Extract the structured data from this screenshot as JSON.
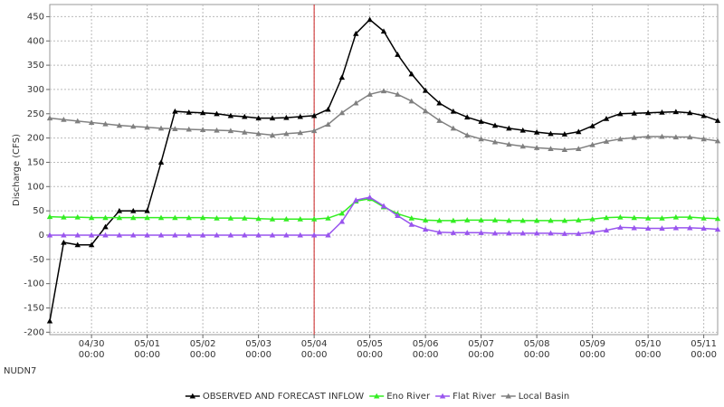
{
  "chart_data": {
    "type": "line",
    "y_label": "Discharge (CFS)",
    "station": "NUDN7",
    "x": [
      "04/29 06:00",
      "04/29 12:00",
      "04/29 18:00",
      "04/30 00:00",
      "04/30 06:00",
      "04/30 12:00",
      "04/30 18:00",
      "05/01 00:00",
      "05/01 06:00",
      "05/01 12:00",
      "05/01 18:00",
      "05/02 00:00",
      "05/02 06:00",
      "05/02 12:00",
      "05/02 18:00",
      "05/03 00:00",
      "05/03 06:00",
      "05/03 12:00",
      "05/03 18:00",
      "05/04 00:00",
      "05/04 06:00",
      "05/04 12:00",
      "05/04 18:00",
      "05/05 00:00",
      "05/05 06:00",
      "05/05 12:00",
      "05/05 18:00",
      "05/06 00:00",
      "05/06 06:00",
      "05/06 12:00",
      "05/06 18:00",
      "05/07 00:00",
      "05/07 06:00",
      "05/07 12:00",
      "05/07 18:00",
      "05/08 00:00",
      "05/08 06:00",
      "05/08 12:00",
      "05/08 18:00",
      "05/09 00:00",
      "05/09 06:00",
      "05/09 12:00",
      "05/09 18:00",
      "05/10 00:00",
      "05/10 06:00",
      "05/10 12:00",
      "05/10 18:00",
      "05/11 00:00",
      "05/11 06:00"
    ],
    "xlim": [
      "04/29 06:00",
      "05/11 06:00"
    ],
    "xticks": [
      "04/30 00:00",
      "05/01 00:00",
      "05/02 00:00",
      "05/03 00:00",
      "05/04 00:00",
      "05/05 00:00",
      "05/06 00:00",
      "05/07 00:00",
      "05/08 00:00",
      "05/09 00:00",
      "05/10 00:00",
      "05/11 00:00"
    ],
    "forecast_start": "05/04 00:00",
    "forecast_line_color": "#cc2222",
    "ylim": [
      -205,
      475
    ],
    "yticks": [
      -200,
      -150,
      -100,
      -50,
      0,
      50,
      100,
      150,
      200,
      250,
      300,
      350,
      400,
      450
    ],
    "grid": true,
    "legend": "bottom",
    "series": [
      {
        "name": "OBSERVED AND FORECAST INFLOW",
        "color": "#000000",
        "values": [
          -177,
          -15,
          -20,
          -20,
          17,
          50,
          50,
          50,
          150,
          255,
          253,
          252,
          250,
          246,
          244,
          241,
          241,
          242,
          244,
          246,
          259,
          325,
          415,
          444,
          420,
          372,
          332,
          298,
          272,
          255,
          243,
          234,
          226,
          220,
          216,
          212,
          209,
          208,
          213,
          225,
          240,
          250,
          251,
          252,
          253,
          254,
          252,
          246,
          236
        ]
      },
      {
        "name": "Eno River",
        "color": "#33ee22",
        "values": [
          38,
          37,
          37,
          36,
          36,
          36,
          36,
          36,
          36,
          36,
          36,
          36,
          35,
          35,
          35,
          34,
          33,
          33,
          33,
          33,
          35,
          45,
          70,
          75,
          58,
          44,
          35,
          31,
          30,
          30,
          31,
          31,
          31,
          30,
          30,
          30,
          30,
          30,
          31,
          33,
          36,
          37,
          36,
          35,
          35,
          37,
          37,
          35,
          34
        ]
      },
      {
        "name": "Flat River",
        "color": "#9955ee",
        "values": [
          0,
          0,
          0,
          0,
          0,
          0,
          0,
          0,
          0,
          0,
          0,
          0,
          0,
          0,
          0,
          0,
          0,
          0,
          0,
          0,
          0,
          28,
          72,
          78,
          60,
          40,
          22,
          12,
          6,
          5,
          5,
          5,
          4,
          4,
          4,
          4,
          4,
          3,
          3,
          6,
          10,
          16,
          15,
          14,
          14,
          15,
          15,
          14,
          12
        ]
      },
      {
        "name": "Local Basin",
        "color": "#808080",
        "values": [
          241,
          238,
          235,
          232,
          229,
          226,
          224,
          222,
          220,
          219,
          218,
          217,
          216,
          215,
          212,
          209,
          206,
          209,
          211,
          215,
          228,
          252,
          272,
          290,
          297,
          290,
          276,
          256,
          236,
          220,
          206,
          198,
          192,
          187,
          183,
          180,
          178,
          176,
          178,
          186,
          193,
          198,
          201,
          203,
          203,
          202,
          202,
          198,
          194
        ]
      }
    ]
  }
}
